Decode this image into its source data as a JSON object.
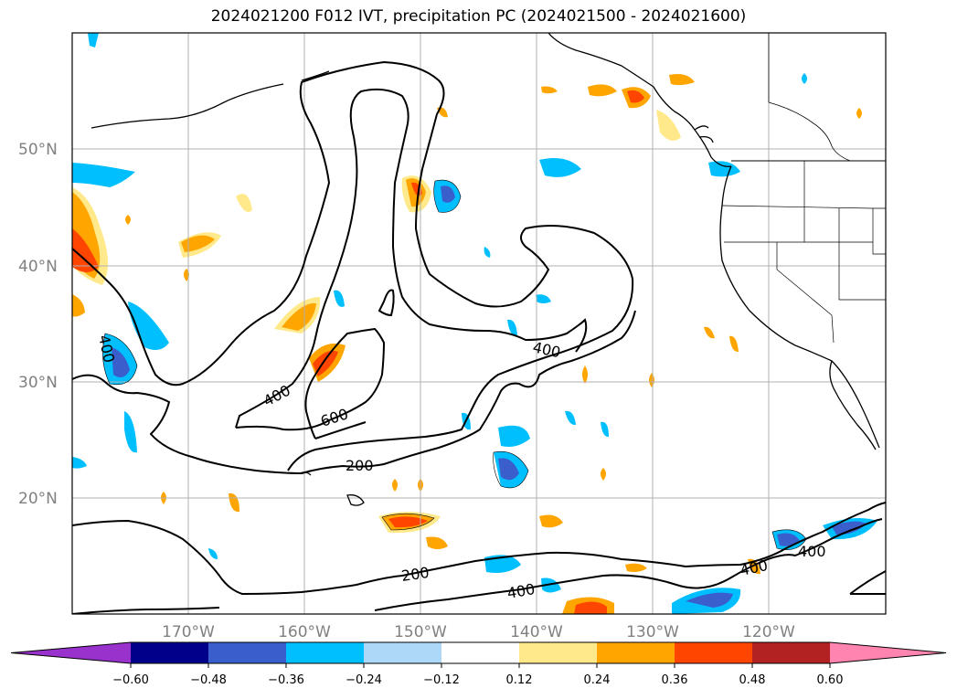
{
  "title": "2024021200 F012 IVT, precipitation PC (2024021500 - 2024021600)",
  "axes": {
    "lat_labels": [
      "50°N",
      "40°N",
      "30°N",
      "20°N"
    ],
    "lon_labels": [
      "170°W",
      "160°W",
      "150°W",
      "140°W",
      "130°W",
      "120°W"
    ]
  },
  "contour_labels": [
    "400",
    "400",
    "400",
    "600",
    "200",
    "200",
    "400",
    "400",
    "400"
  ],
  "colorbar": {
    "ticks": [
      "−0.60",
      "−0.48",
      "−0.36",
      "−0.24",
      "−0.12",
      "0.12",
      "0.24",
      "0.36",
      "0.48",
      "0.60"
    ],
    "colors": [
      "#9932cc",
      "#00008b",
      "#3a5fcd",
      "#00bfff",
      "#add8f8",
      "#ffffff",
      "#ffe98a",
      "#ffa500",
      "#ff4500",
      "#b22222",
      "#ff85b0"
    ]
  },
  "colors": {
    "neg_strong": "#3a5fcd",
    "neg_mid": "#00bfff",
    "neg_weak": "#add8f8",
    "pos_weak": "#ffe98a",
    "pos_mid": "#ffa500",
    "pos_strong": "#ff4500"
  }
}
